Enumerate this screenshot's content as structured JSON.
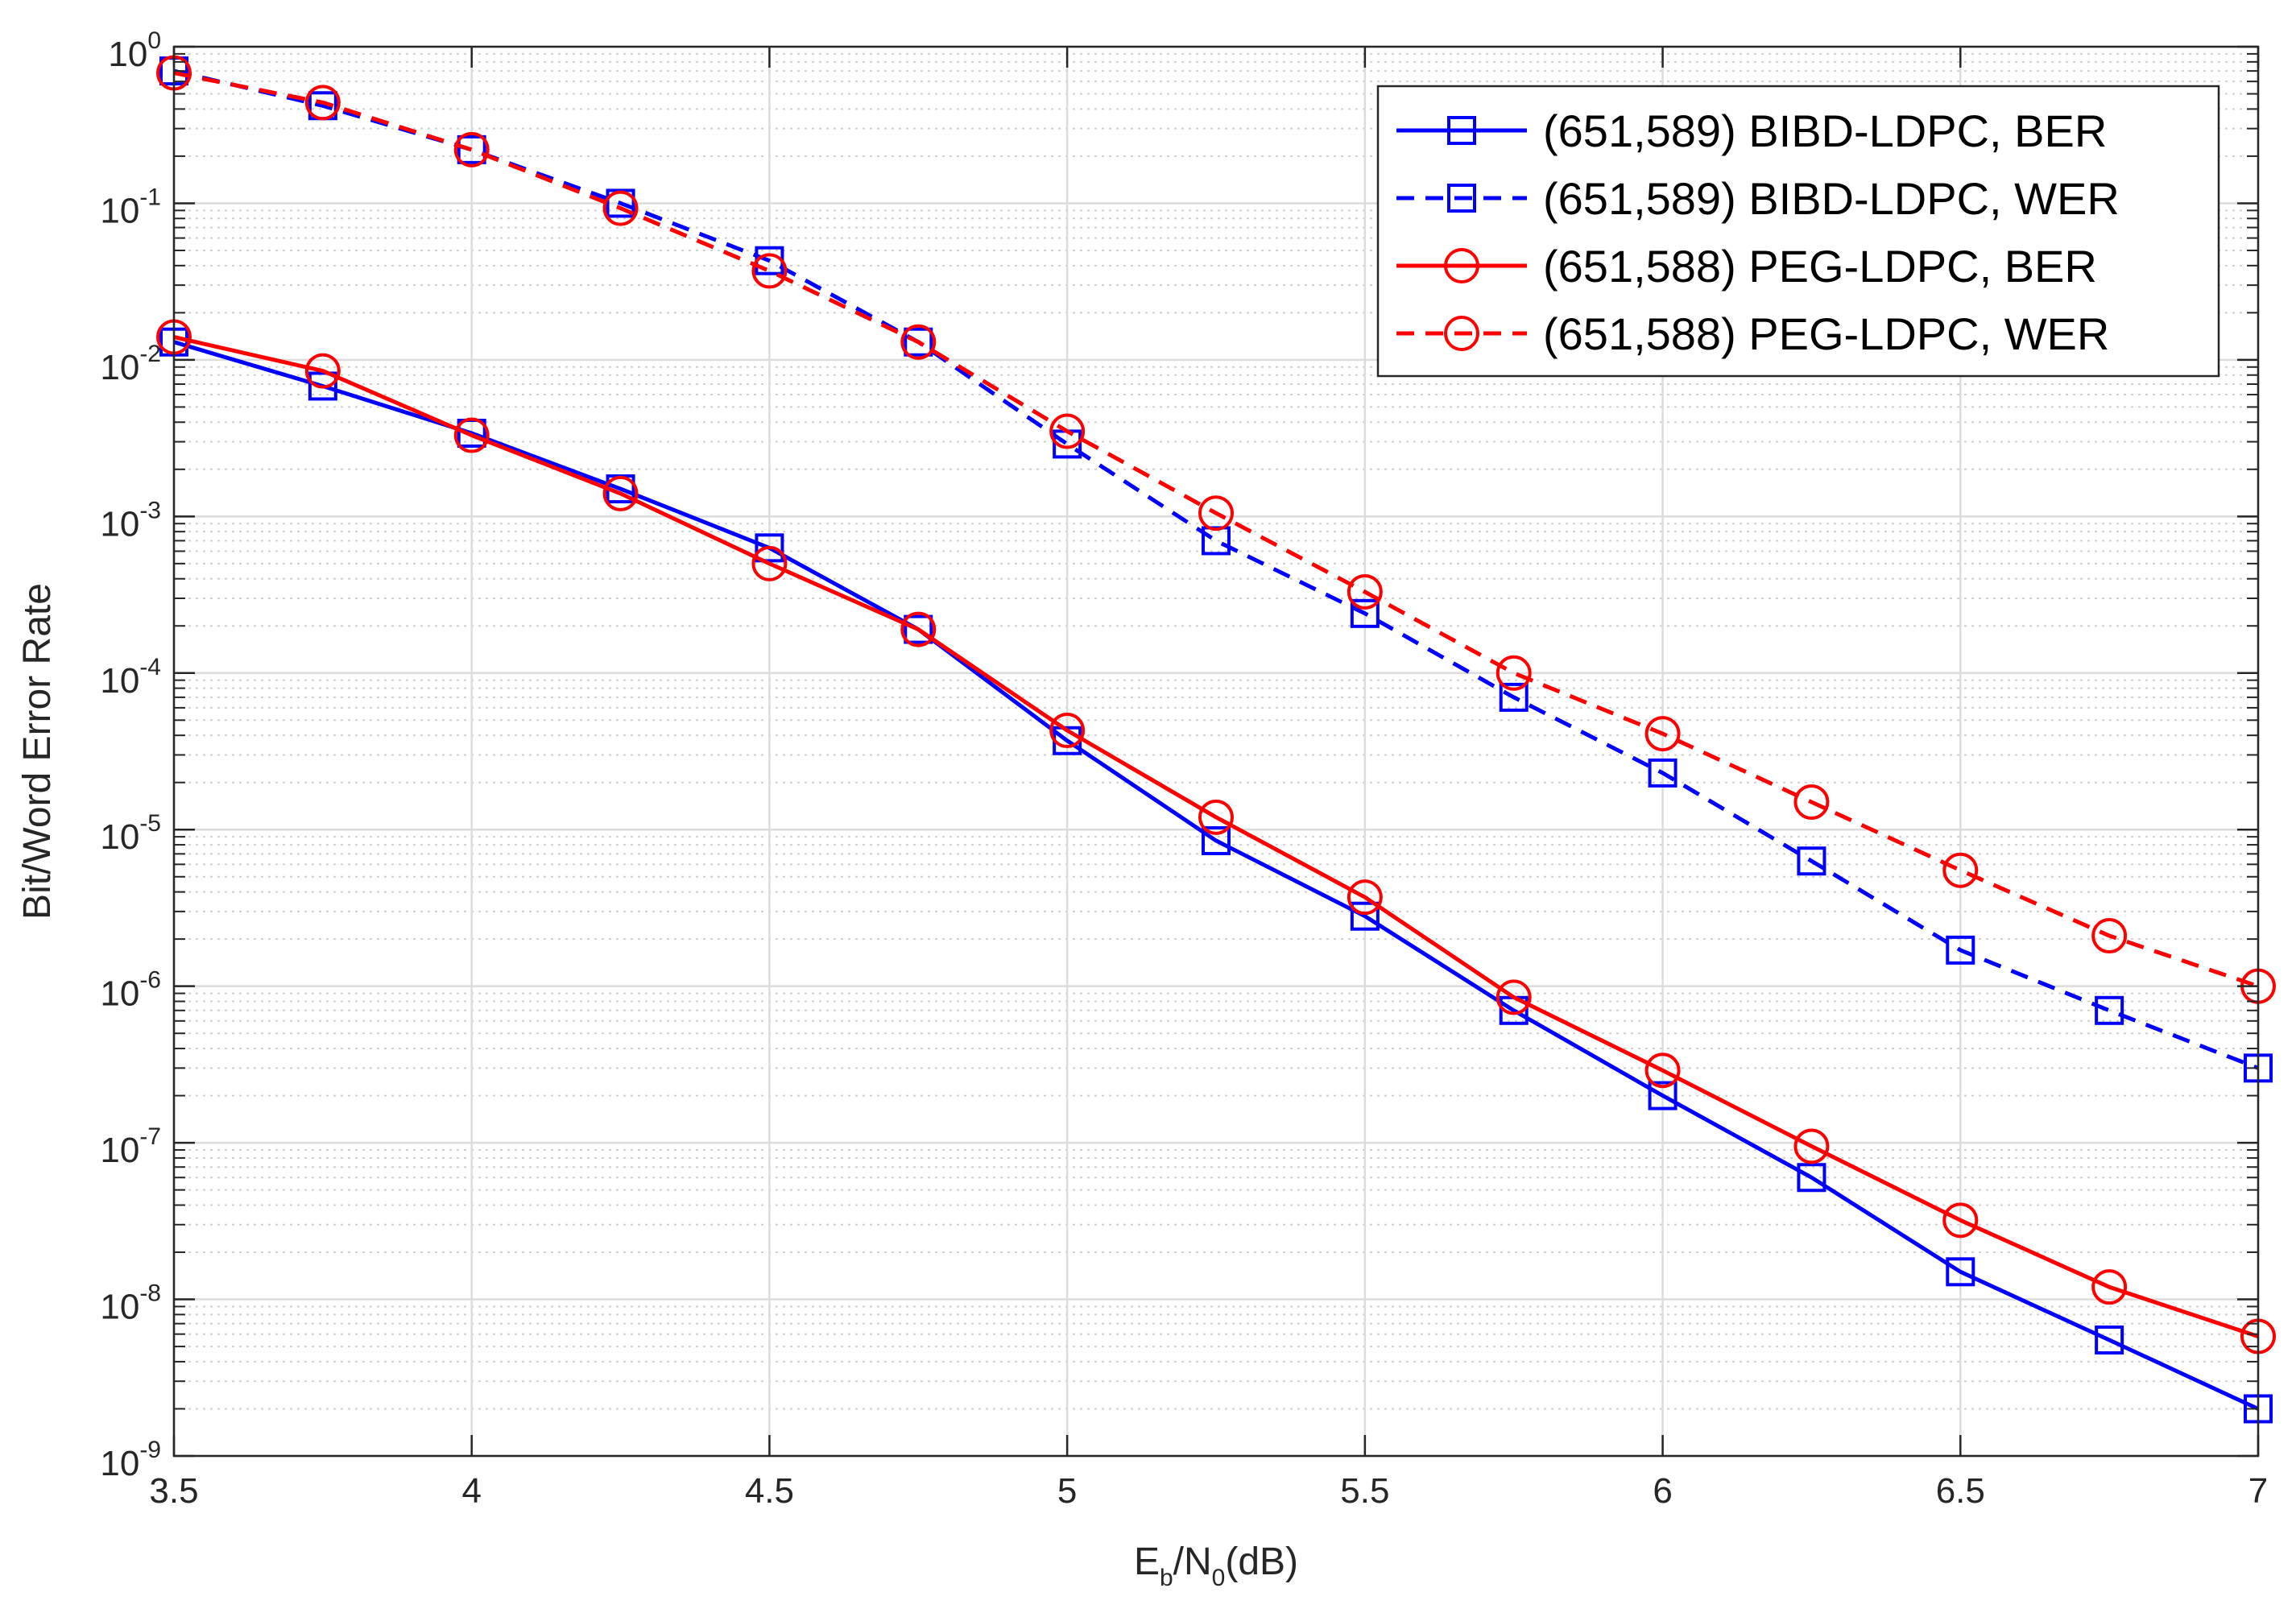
{
  "chart_data": {
    "type": "line",
    "yscale": "log",
    "xlabel_main": "E",
    "xlabel_sub1": "b",
    "xlabel_mid": "/N",
    "xlabel_sub2": "0",
    "xlabel_tail": "(dB)",
    "ylabel": "Bit/Word Error Rate",
    "xlim": [
      3.5,
      7
    ],
    "ylim": [
      1e-09,
      1
    ],
    "grid": true,
    "legend_position": "top-right",
    "x": [
      3.5,
      3.75,
      4,
      4.25,
      4.5,
      4.75,
      5,
      5.25,
      5.5,
      5.75,
      6,
      6.25,
      6.5,
      6.75,
      7
    ],
    "xticks": [
      3.5,
      4,
      4.5,
      5,
      5.5,
      6,
      6.5,
      7
    ],
    "xtick_labels": [
      "3.5",
      "4",
      "4.5",
      "5",
      "5.5",
      "6",
      "6.5",
      "7"
    ],
    "yticks": [
      {
        "base": "10",
        "exp": "0",
        "value": 1
      },
      {
        "base": "10",
        "exp": "-1",
        "value": 0.1
      },
      {
        "base": "10",
        "exp": "-2",
        "value": 0.01
      },
      {
        "base": "10",
        "exp": "-3",
        "value": 0.001
      },
      {
        "base": "10",
        "exp": "-4",
        "value": 0.0001
      },
      {
        "base": "10",
        "exp": "-5",
        "value": 1e-05
      },
      {
        "base": "10",
        "exp": "-6",
        "value": 1e-06
      },
      {
        "base": "10",
        "exp": "-7",
        "value": 1e-07
      },
      {
        "base": "10",
        "exp": "-8",
        "value": 1e-08
      },
      {
        "base": "10",
        "exp": "-9",
        "value": 1e-09
      }
    ],
    "series": [
      {
        "name": "(651,589) BIBD-LDPC, BER",
        "color": "#0000ff",
        "dash": "solid",
        "marker": "square",
        "values": [
          0.013,
          0.0068,
          0.0034,
          0.0015,
          0.00063,
          0.00019,
          3.7e-05,
          8.5e-06,
          2.8e-06,
          7e-07,
          2e-07,
          6e-08,
          1.5e-08,
          5.5e-09,
          2e-09
        ]
      },
      {
        "name": "(651,589) BIBD-LDPC, WER",
        "color": "#0000ff",
        "dash": "dashed",
        "marker": "square",
        "values": [
          0.7,
          0.42,
          0.22,
          0.1,
          0.043,
          0.013,
          0.0029,
          0.0007,
          0.00024,
          7e-05,
          2.3e-05,
          6.3e-06,
          1.7e-06,
          7e-07,
          3e-07
        ]
      },
      {
        "name": "(651,588) PEG-LDPC, BER",
        "color": "#ff0000",
        "dash": "solid",
        "marker": "circle",
        "values": [
          0.014,
          0.0085,
          0.0033,
          0.0014,
          0.0005,
          0.00019,
          4.3e-05,
          1.2e-05,
          3.7e-06,
          8.5e-07,
          2.9e-07,
          9.5e-08,
          3.2e-08,
          1.2e-08,
          5.8e-09
        ]
      },
      {
        "name": "(651,588) PEG-LDPC, WER",
        "color": "#ff0000",
        "dash": "dashed",
        "marker": "circle",
        "values": [
          0.68,
          0.44,
          0.22,
          0.093,
          0.037,
          0.013,
          0.0035,
          0.00105,
          0.00033,
          0.0001,
          4.1e-05,
          1.5e-05,
          5.5e-06,
          2.1e-06,
          1e-06
        ]
      }
    ]
  }
}
